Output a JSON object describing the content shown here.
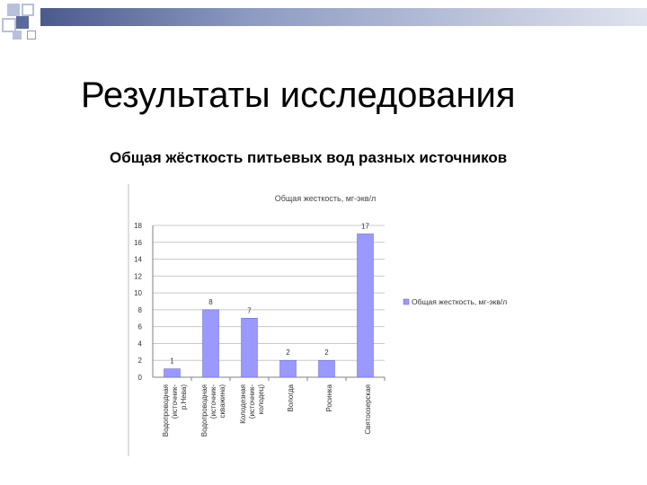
{
  "slide": {
    "title": "Результаты исследования",
    "subtitle": "Общая жёсткость питьевых вод разных источников"
  },
  "colors": {
    "bar_fill": "#9999ff",
    "header_band_start": "#4a5a8c",
    "header_band_end": "#dfe3ee",
    "deco_square_dark": "#5a6a9a",
    "deco_square_light": "#b8c0dc"
  },
  "chart_data": {
    "type": "bar",
    "title": "Общая жесткость, мг-экв/л",
    "categories": [
      "Водопроводная (источник- р.Нева)",
      "Водопроводная (источник- скважина)",
      "Колодезная (источник- колодец)",
      "Вологда",
      "Росинка",
      "Святоозерская"
    ],
    "series": [
      {
        "name": "Общая жесткость, мг-экв/л",
        "values": [
          1,
          8,
          7,
          2,
          2,
          17
        ]
      }
    ],
    "data_labels": [
      "1",
      "8",
      "7",
      "2",
      "2",
      "17"
    ],
    "ylim": [
      0,
      18
    ],
    "yticks": [
      "0",
      "2",
      "4",
      "6",
      "8",
      "10",
      "12",
      "14",
      "16",
      "18"
    ],
    "grid": true,
    "legend_position": "right"
  }
}
